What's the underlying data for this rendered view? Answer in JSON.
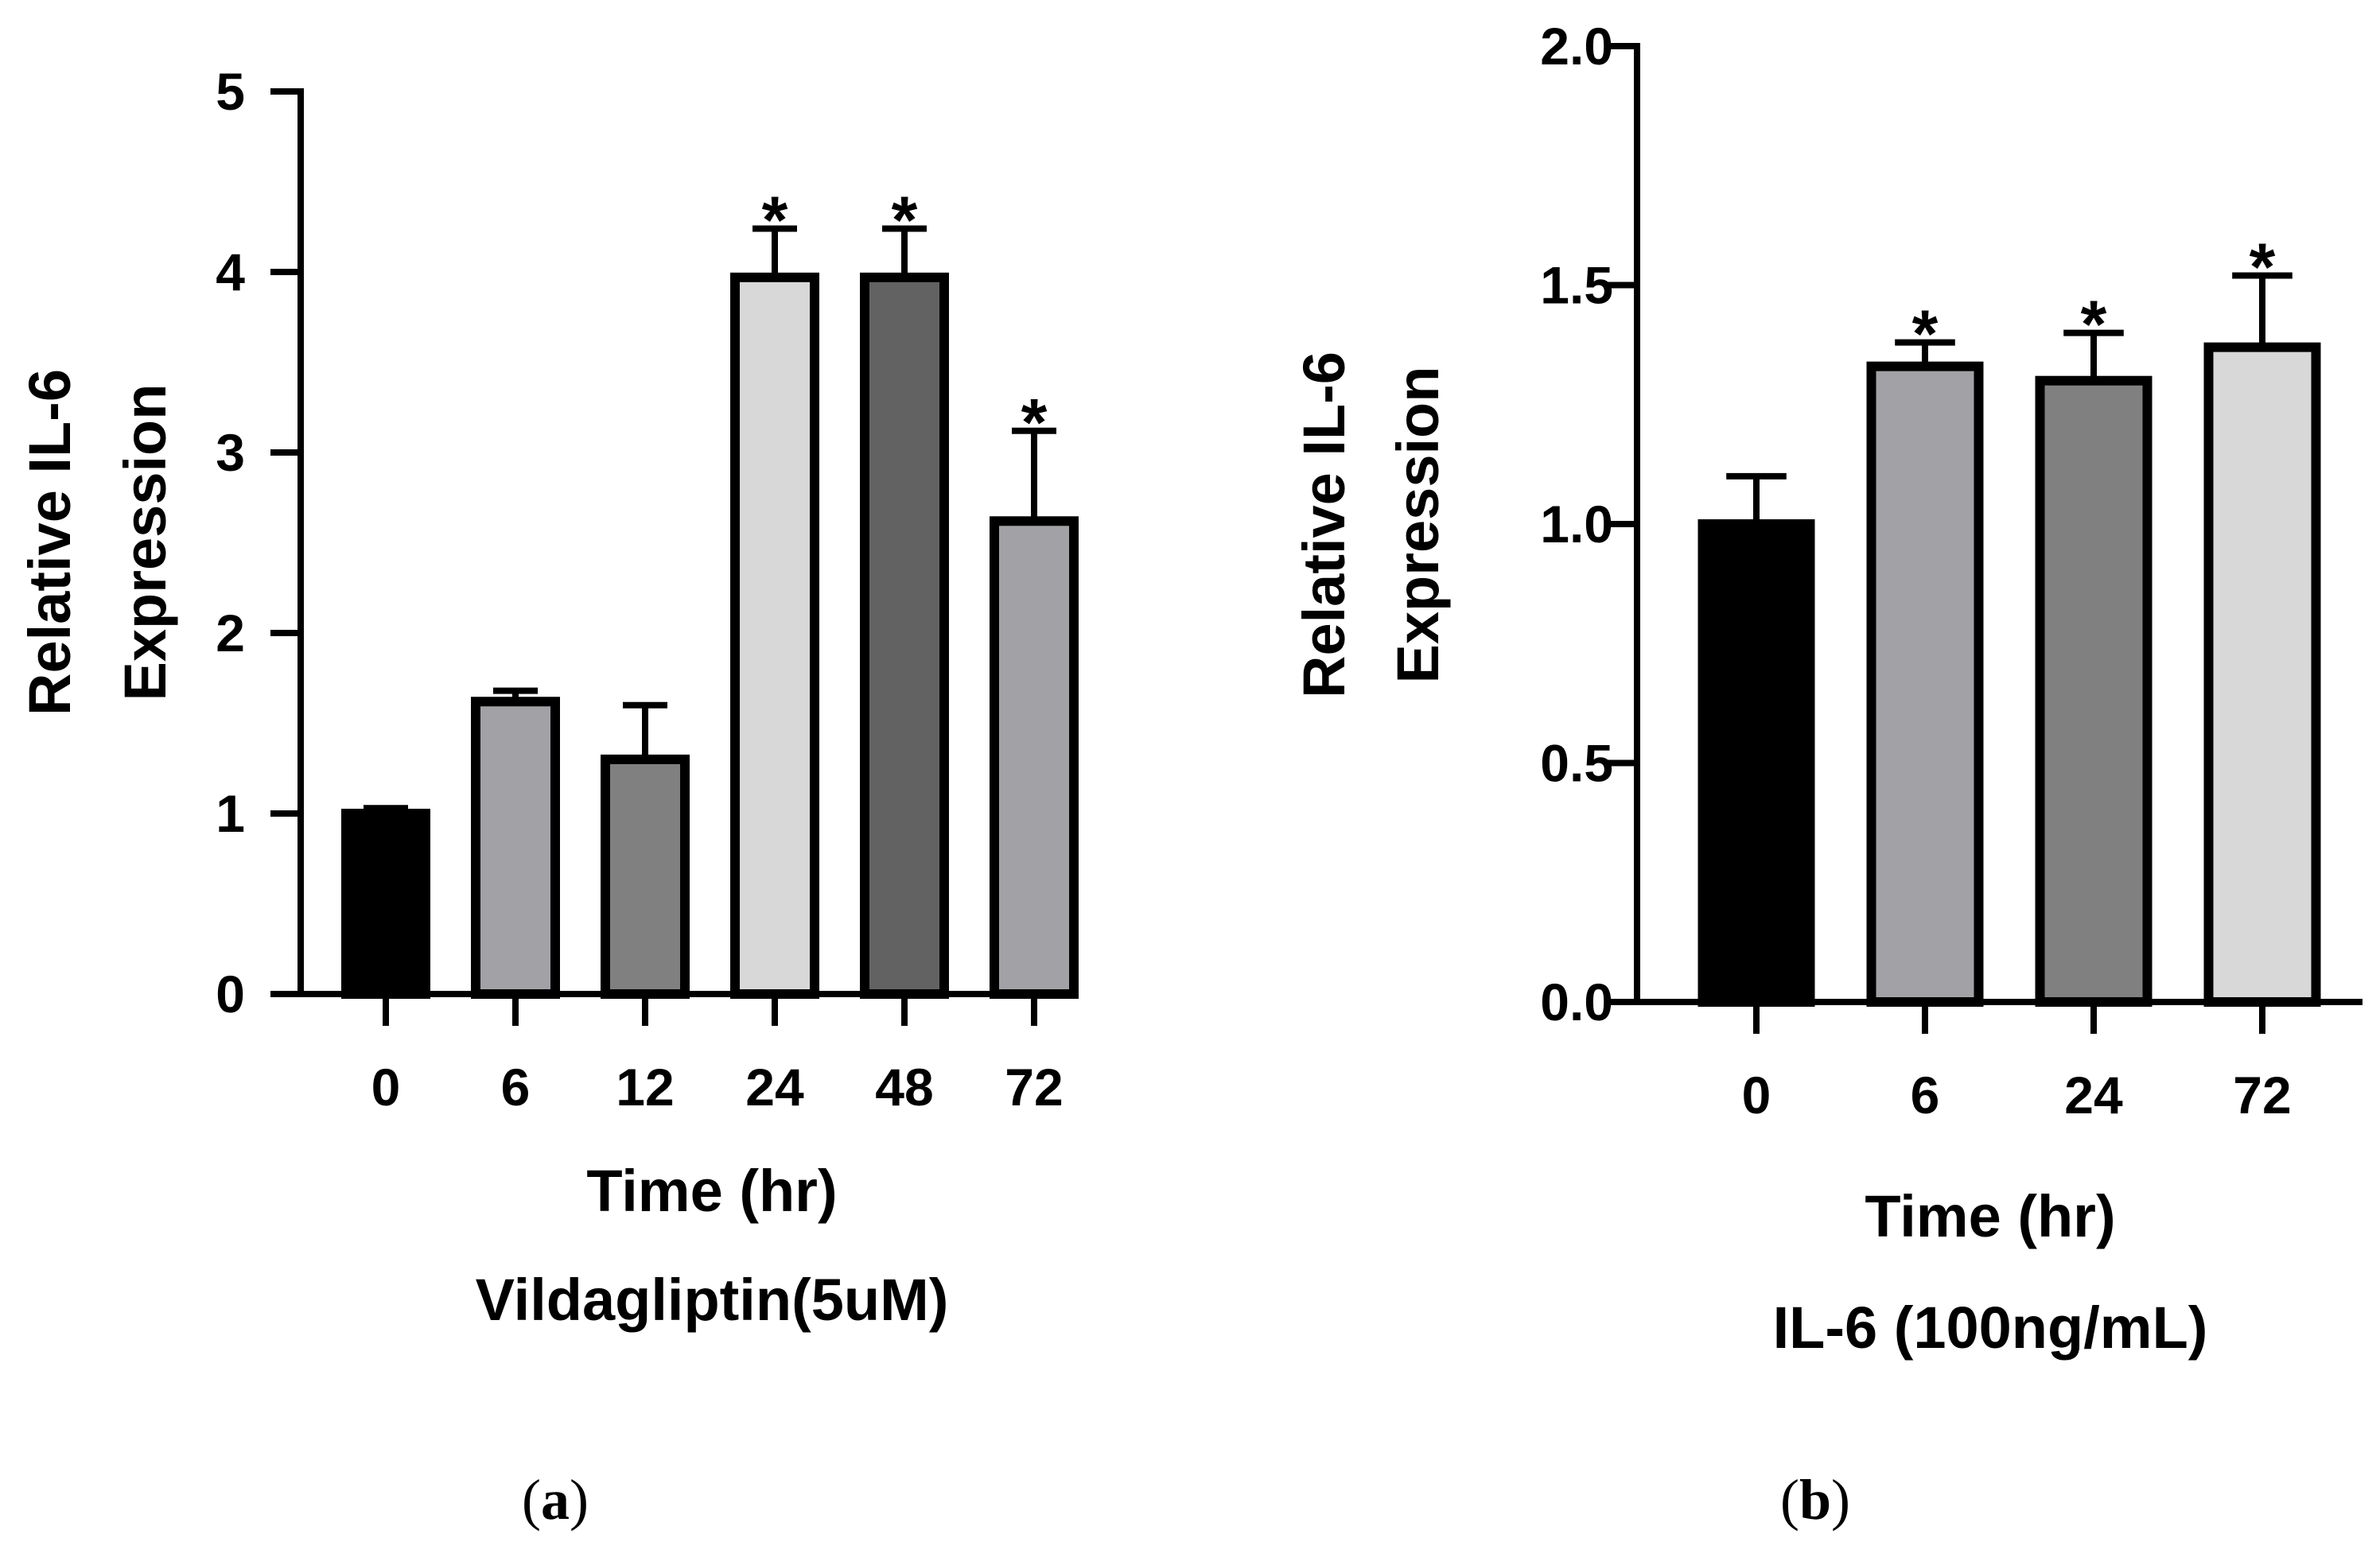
{
  "chart_data": [
    {
      "type": "bar",
      "panel_label": "(a)",
      "treatment": "Vildagliptin(5uM)",
      "xlabel": "Time (hr)",
      "ylabel": [
        "Relative IL-6",
        "Expression"
      ],
      "ylim": [
        0,
        5
      ],
      "yticks": [
        0,
        1,
        2,
        3,
        4,
        5
      ],
      "ytick_labels": [
        "0",
        "1",
        "2",
        "3",
        "4",
        "5"
      ],
      "categories": [
        "0",
        "6",
        "12",
        "24",
        "48",
        "72"
      ],
      "values": [
        1.0,
        1.62,
        1.3,
        3.97,
        3.97,
        2.62
      ],
      "errors": [
        0.03,
        0.06,
        0.3,
        0.27,
        0.27,
        0.5
      ],
      "significance": [
        "",
        "",
        "",
        "*",
        "*",
        "*"
      ],
      "colors": [
        "#000000",
        "#a2a2a6",
        "#808080",
        "#d8d8d8",
        "#626262",
        "#a2a2a6"
      ],
      "grid": false
    },
    {
      "type": "bar",
      "panel_label": "(b)",
      "treatment": "IL-6 (100ng/mL)",
      "xlabel": "Time (hr)",
      "ylabel": [
        "Relative IL-6",
        "Expression"
      ],
      "ylim": [
        0,
        2.0
      ],
      "yticks": [
        0,
        0.5,
        1.0,
        1.5,
        2.0
      ],
      "ytick_labels": [
        "0.0",
        "0.5",
        "1.0",
        "1.5",
        "2.0"
      ],
      "categories": [
        "0",
        "6",
        "24",
        "72"
      ],
      "values": [
        1.0,
        1.33,
        1.3,
        1.37
      ],
      "errors": [
        0.1,
        0.05,
        0.1,
        0.15
      ],
      "significance": [
        "",
        "*",
        "*",
        "*"
      ],
      "colors": [
        "#000000",
        "#a2a2a6",
        "#808080",
        "#d8d8d8"
      ],
      "grid": false
    }
  ]
}
